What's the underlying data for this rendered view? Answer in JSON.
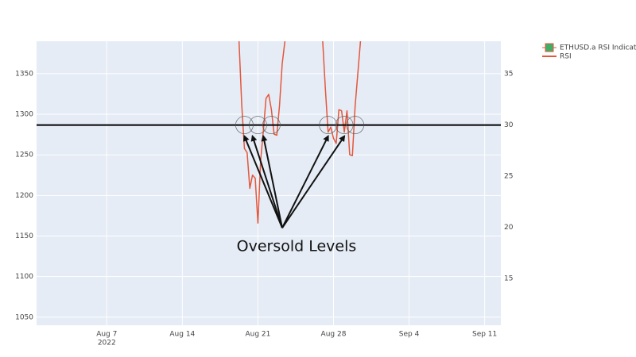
{
  "chart_data": {
    "type": "line",
    "colors": {
      "plot_background": "#e5ecf6",
      "grid": "#ffffff",
      "rsi_line": "#e4573c",
      "legend_candle_fill": "#3fae67",
      "legend_candle_border": "#e4573c",
      "threshold_line": "#000000",
      "annotation": "#111111",
      "circle": "#555555"
    },
    "x_axis": {
      "range": [
        "2022-07-31T12:00",
        "2022-09-12T12:00"
      ],
      "tick_values": [
        "2022-08-07",
        "2022-08-14",
        "2022-08-21",
        "2022-08-28",
        "2022-09-04",
        "2022-09-11"
      ],
      "tick_labels": [
        "Aug 7",
        "Aug 14",
        "Aug 21",
        "Aug 28",
        "Sep 4",
        "Sep 11"
      ],
      "year_label": "2022"
    },
    "y_axis_left": {
      "range": [
        1040,
        1390
      ],
      "tick_values": [
        1050,
        1100,
        1150,
        1200,
        1250,
        1300,
        1350
      ],
      "tick_labels": [
        "1050",
        "1100",
        "1150",
        "1200",
        "1250",
        "1300",
        "1350"
      ]
    },
    "y_axis_right": {
      "range": [
        10.4,
        38.2
      ],
      "tick_values": [
        15,
        20,
        25,
        30,
        35
      ],
      "tick_labels": [
        "15",
        "20",
        "25",
        "30",
        "35"
      ]
    },
    "series": [
      {
        "name": "ETHUSD.a RSI Indicator",
        "legend_icon": "candlestick",
        "values": []
      },
      {
        "name": "RSI",
        "legend_icon": "line",
        "axis": "right",
        "x": [
          "2022-08-19T06:00",
          "2022-08-19T12:00",
          "2022-08-19T18:00",
          "2022-08-20T00:00",
          "2022-08-20T06:00",
          "2022-08-20T12:00",
          "2022-08-20T18:00",
          "2022-08-21T00:00",
          "2022-08-21T06:00",
          "2022-08-21T12:00",
          "2022-08-21T18:00",
          "2022-08-22T00:00",
          "2022-08-22T06:00",
          "2022-08-22T12:00",
          "2022-08-22T18:00",
          "2022-08-23T00:00",
          "2022-08-23T06:00",
          "2022-08-23T12:00",
          null,
          "2022-08-27T00:00",
          "2022-08-27T06:00",
          "2022-08-27T12:00",
          "2022-08-27T18:00",
          "2022-08-28T00:00",
          "2022-08-28T06:00",
          "2022-08-28T12:00",
          "2022-08-28T18:00",
          "2022-08-29T00:00",
          "2022-08-29T06:00",
          "2022-08-29T12:00",
          "2022-08-29T18:00",
          "2022-08-30T00:00",
          "2022-08-30T06:00",
          "2022-08-30T12:00"
        ],
        "values": [
          38.2,
          32.0,
          27.7,
          27.3,
          23.8,
          25.1,
          24.8,
          20.4,
          26.5,
          29.4,
          32.6,
          33.0,
          31.5,
          29.1,
          29.0,
          31.9,
          36.0,
          38.2,
          null,
          38.2,
          33.5,
          29.3,
          29.8,
          28.7,
          28.2,
          31.5,
          31.4,
          29.3,
          31.4,
          27.1,
          27.0,
          31.8,
          35.0,
          38.2
        ]
      }
    ],
    "threshold": {
      "value": 30,
      "axis": "right"
    },
    "highlight_points": {
      "x": [
        "2022-08-19T18:00",
        "2022-08-21T00:00",
        "2022-08-22T06:00",
        "2022-08-27T12:00",
        "2022-08-29T00:00",
        "2022-08-30T00:00"
      ],
      "y": [
        30,
        30,
        30,
        30,
        30,
        30
      ]
    },
    "annotation": {
      "text": "Oversold Levels",
      "anchor_x": "2022-08-23T06:00",
      "anchor_y": 20,
      "arrow_targets_x": [
        "2022-08-19T18:00",
        "2022-08-20T12:00",
        "2022-08-21T12:00",
        "2022-08-27T12:00",
        "2022-08-29T00:00"
      ],
      "arrow_targets_y": [
        28.9,
        28.9,
        28.9,
        28.9,
        28.9
      ]
    },
    "grid": true,
    "legend_position": "top-right"
  }
}
